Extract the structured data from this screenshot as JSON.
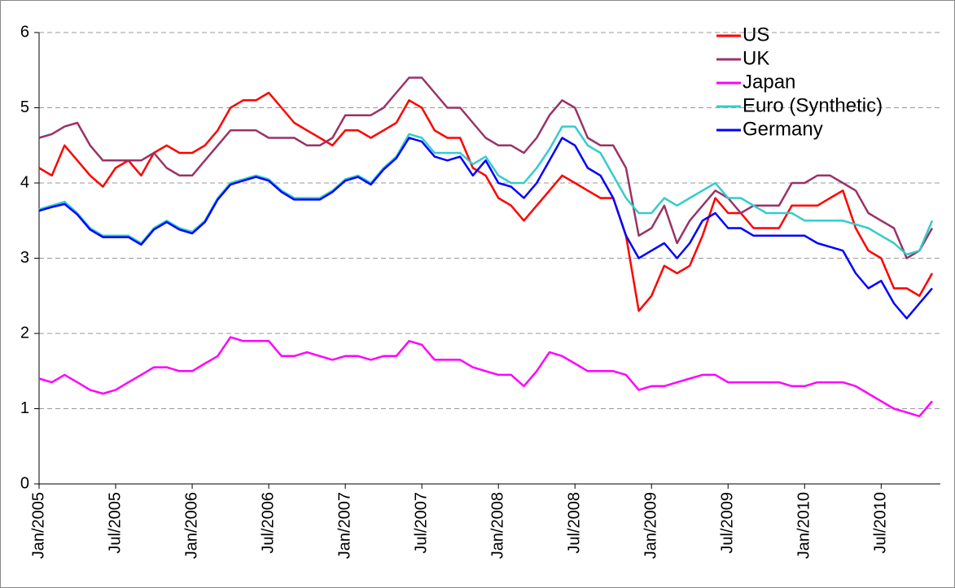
{
  "chart_data": {
    "type": "line",
    "x": [
      "2005-01",
      "2005-02",
      "2005-03",
      "2005-04",
      "2005-05",
      "2005-06",
      "2005-07",
      "2005-08",
      "2005-09",
      "2005-10",
      "2005-11",
      "2005-12",
      "2006-01",
      "2006-02",
      "2006-03",
      "2006-04",
      "2006-05",
      "2006-06",
      "2006-07",
      "2006-08",
      "2006-09",
      "2006-10",
      "2006-11",
      "2006-12",
      "2007-01",
      "2007-02",
      "2007-03",
      "2007-04",
      "2007-05",
      "2007-06",
      "2007-07",
      "2007-08",
      "2007-09",
      "2007-10",
      "2007-11",
      "2007-12",
      "2008-01",
      "2008-02",
      "2008-03",
      "2008-04",
      "2008-05",
      "2008-06",
      "2008-07",
      "2008-08",
      "2008-09",
      "2008-10",
      "2008-11",
      "2008-12",
      "2009-01",
      "2009-02",
      "2009-03",
      "2009-04",
      "2009-05",
      "2009-06",
      "2009-07",
      "2009-08",
      "2009-09",
      "2009-10",
      "2009-11",
      "2009-12",
      "2010-01",
      "2010-02",
      "2010-03",
      "2010-04",
      "2010-05",
      "2010-06",
      "2010-07",
      "2010-08",
      "2010-09",
      "2010-10",
      "2010-11"
    ],
    "series": [
      {
        "name": "US",
        "color": "#ff0000",
        "values": [
          4.2,
          4.1,
          4.5,
          4.3,
          4.1,
          3.95,
          4.2,
          4.3,
          4.1,
          4.4,
          4.5,
          4.4,
          4.4,
          4.5,
          4.7,
          5.0,
          5.1,
          5.1,
          5.2,
          5.0,
          4.8,
          4.7,
          4.6,
          4.5,
          4.7,
          4.7,
          4.6,
          4.7,
          4.8,
          5.1,
          5.0,
          4.7,
          4.6,
          4.6,
          4.2,
          4.1,
          3.8,
          3.7,
          3.5,
          3.7,
          3.9,
          4.1,
          4.0,
          3.9,
          3.8,
          3.8,
          3.3,
          2.3,
          2.5,
          2.9,
          2.8,
          2.9,
          3.3,
          3.8,
          3.6,
          3.6,
          3.4,
          3.4,
          3.4,
          3.7,
          3.7,
          3.7,
          3.8,
          3.9,
          3.4,
          3.1,
          3.0,
          2.6,
          2.6,
          2.5,
          2.8
        ]
      },
      {
        "name": "UK",
        "color": "#993366",
        "values": [
          4.6,
          4.65,
          4.75,
          4.8,
          4.5,
          4.3,
          4.3,
          4.3,
          4.3,
          4.4,
          4.2,
          4.1,
          4.1,
          4.3,
          4.5,
          4.7,
          4.7,
          4.7,
          4.6,
          4.6,
          4.6,
          4.5,
          4.5,
          4.6,
          4.9,
          4.9,
          4.9,
          5.0,
          5.2,
          5.4,
          5.4,
          5.2,
          5.0,
          5.0,
          4.8,
          4.6,
          4.5,
          4.5,
          4.4,
          4.6,
          4.9,
          5.1,
          5.0,
          4.6,
          4.5,
          4.5,
          4.2,
          3.3,
          3.4,
          3.7,
          3.2,
          3.5,
          3.7,
          3.9,
          3.8,
          3.6,
          3.7,
          3.7,
          3.7,
          4.0,
          4.0,
          4.1,
          4.1,
          4.0,
          3.9,
          3.6,
          3.5,
          3.4,
          3.0,
          3.1,
          3.4
        ]
      },
      {
        "name": "Japan",
        "color": "#ff00ff",
        "values": [
          1.4,
          1.35,
          1.45,
          1.35,
          1.25,
          1.2,
          1.25,
          1.35,
          1.45,
          1.55,
          1.55,
          1.5,
          1.5,
          1.6,
          1.7,
          1.95,
          1.9,
          1.9,
          1.9,
          1.7,
          1.7,
          1.75,
          1.7,
          1.65,
          1.7,
          1.7,
          1.65,
          1.7,
          1.7,
          1.9,
          1.85,
          1.65,
          1.65,
          1.65,
          1.55,
          1.5,
          1.45,
          1.45,
          1.3,
          1.5,
          1.75,
          1.7,
          1.6,
          1.5,
          1.5,
          1.5,
          1.45,
          1.25,
          1.3,
          1.3,
          1.35,
          1.4,
          1.45,
          1.45,
          1.35,
          1.35,
          1.35,
          1.35,
          1.35,
          1.3,
          1.3,
          1.35,
          1.35,
          1.35,
          1.3,
          1.2,
          1.1,
          1.0,
          0.95,
          0.9,
          1.1
        ]
      },
      {
        "name": "Euro (Synthetic)",
        "color": "#33cccc",
        "values": [
          3.65,
          3.7,
          3.75,
          3.6,
          3.4,
          3.3,
          3.3,
          3.3,
          3.2,
          3.4,
          3.5,
          3.4,
          3.35,
          3.5,
          3.8,
          4.0,
          4.05,
          4.1,
          4.05,
          3.9,
          3.8,
          3.8,
          3.8,
          3.9,
          4.05,
          4.1,
          4.0,
          4.2,
          4.35,
          4.65,
          4.6,
          4.4,
          4.4,
          4.4,
          4.25,
          4.35,
          4.1,
          4.0,
          4.0,
          4.2,
          4.45,
          4.75,
          4.75,
          4.5,
          4.4,
          4.1,
          3.8,
          3.6,
          3.6,
          3.8,
          3.7,
          3.8,
          3.9,
          4.0,
          3.8,
          3.8,
          3.7,
          3.6,
          3.6,
          3.6,
          3.5,
          3.5,
          3.5,
          3.5,
          3.45,
          3.4,
          3.3,
          3.2,
          3.05,
          3.1,
          3.5
        ]
      },
      {
        "name": "Germany",
        "color": "#0000ff",
        "values": [
          3.63,
          3.68,
          3.72,
          3.58,
          3.38,
          3.28,
          3.28,
          3.28,
          3.18,
          3.38,
          3.48,
          3.38,
          3.33,
          3.48,
          3.78,
          3.98,
          4.03,
          4.08,
          4.03,
          3.88,
          3.78,
          3.78,
          3.78,
          3.88,
          4.03,
          4.08,
          3.98,
          4.18,
          4.33,
          4.6,
          4.55,
          4.35,
          4.3,
          4.35,
          4.1,
          4.3,
          4.0,
          3.95,
          3.8,
          4.0,
          4.3,
          4.6,
          4.5,
          4.2,
          4.1,
          3.8,
          3.3,
          3.0,
          3.1,
          3.2,
          3.0,
          3.2,
          3.5,
          3.6,
          3.4,
          3.4,
          3.3,
          3.3,
          3.3,
          3.3,
          3.3,
          3.2,
          3.15,
          3.1,
          2.8,
          2.6,
          2.7,
          2.4,
          2.2,
          2.4,
          2.6
        ]
      }
    ],
    "xticks": [
      {
        "value": "2005-01",
        "label": "Jan/2005"
      },
      {
        "value": "2005-07",
        "label": "Jul/2005"
      },
      {
        "value": "2006-01",
        "label": "Jan/2006"
      },
      {
        "value": "2006-07",
        "label": "Jul/2006"
      },
      {
        "value": "2007-01",
        "label": "Jan/2007"
      },
      {
        "value": "2007-07",
        "label": "Jul/2007"
      },
      {
        "value": "2008-01",
        "label": "Jan/2008"
      },
      {
        "value": "2008-07",
        "label": "Jul/2008"
      },
      {
        "value": "2009-01",
        "label": "Jan/2009"
      },
      {
        "value": "2009-07",
        "label": "Jul/2009"
      },
      {
        "value": "2010-01",
        "label": "Jan/2010"
      },
      {
        "value": "2010-07",
        "label": "Jul/2010"
      }
    ],
    "ylim": [
      0,
      6
    ],
    "yticks": [
      0,
      1,
      2,
      3,
      4,
      5,
      6
    ],
    "grid": true,
    "legend": "upper right"
  }
}
